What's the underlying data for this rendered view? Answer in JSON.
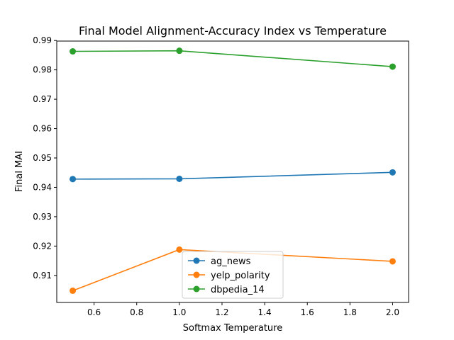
{
  "chart_data": {
    "type": "line",
    "title": "Final Model Alignment-Accuracy Index vs Temperature",
    "xlabel": "Softmax Temperature",
    "ylabel": "Final MAI",
    "xlim": [
      0.425,
      2.075
    ],
    "ylim": [
      0.9008,
      0.9898
    ],
    "xticks": [
      0.6,
      0.8,
      1.0,
      1.2,
      1.4,
      1.6,
      1.8,
      2.0
    ],
    "xtick_labels": [
      "0.6",
      "0.8",
      "1.0",
      "1.2",
      "1.4",
      "1.6",
      "1.8",
      "2.0"
    ],
    "yticks": [
      0.91,
      0.92,
      0.93,
      0.94,
      0.95,
      0.96,
      0.97,
      0.98,
      0.99
    ],
    "ytick_labels": [
      "0.91",
      "0.92",
      "0.93",
      "0.94",
      "0.95",
      "0.96",
      "0.97",
      "0.98",
      "0.99"
    ],
    "grid": false,
    "legend_position": "lower center",
    "series": [
      {
        "name": "ag_news",
        "color": "#1f77b4",
        "x": [
          0.5,
          1.0,
          2.0
        ],
        "y": [
          0.9428,
          0.9429,
          0.9451
        ]
      },
      {
        "name": "yelp_polarity",
        "color": "#ff7f0e",
        "x": [
          0.5,
          1.0,
          2.0
        ],
        "y": [
          0.9048,
          0.9188,
          0.9148
        ]
      },
      {
        "name": "dbpedia_14",
        "color": "#2ca02c",
        "x": [
          0.5,
          1.0,
          2.0
        ],
        "y": [
          0.9863,
          0.9865,
          0.9811
        ]
      }
    ]
  }
}
